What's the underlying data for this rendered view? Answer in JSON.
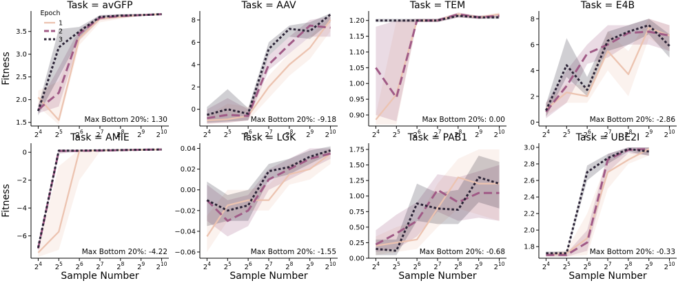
{
  "figure": {
    "ylabel": "Fitness",
    "xlabel": "Sample Number",
    "legend": {
      "title": "Epoch",
      "entries": [
        "1",
        "2",
        "3"
      ],
      "placement": "top-left of first panel"
    },
    "series_colors": {
      "1": "#ecc3b0",
      "2": "#a05a86",
      "3": "#2b2336"
    }
  },
  "chart_data": [
    {
      "type": "line",
      "title": "Task = avGFP",
      "annotation": "Max Bottom 20%: 1.30",
      "x_exponents": [
        4,
        5,
        6,
        7,
        8,
        9,
        10
      ],
      "x_ticks": [
        4,
        5,
        6,
        7,
        8,
        9,
        10
      ],
      "ylim": [
        1.42,
        3.95
      ],
      "yticks": [
        1.5,
        2.0,
        2.5,
        3.0,
        3.5
      ],
      "ytick_labels": [
        "1.5",
        "2.0",
        "2.5",
        "3.0",
        "3.5"
      ],
      "series": [
        {
          "name": "1",
          "values": [
            2.05,
            1.55,
            3.35,
            3.78,
            3.82,
            3.86,
            3.88
          ],
          "lower": [
            1.85,
            1.45,
            3.2,
            3.7,
            3.78,
            3.84,
            3.86
          ],
          "upper": [
            2.2,
            2.4,
            3.5,
            3.82,
            3.86,
            3.88,
            3.9
          ]
        },
        {
          "name": "2",
          "values": [
            1.78,
            2.15,
            3.45,
            3.8,
            3.84,
            3.86,
            3.88
          ],
          "lower": [
            1.7,
            1.85,
            3.3,
            3.75,
            3.8,
            3.84,
            3.86
          ],
          "upper": [
            1.9,
            2.7,
            3.55,
            3.85,
            3.88,
            3.88,
            3.9
          ]
        },
        {
          "name": "3",
          "values": [
            1.75,
            3.15,
            3.5,
            3.82,
            3.85,
            3.86,
            3.88
          ],
          "lower": [
            1.65,
            2.5,
            3.35,
            3.78,
            3.82,
            3.84,
            3.86
          ],
          "upper": [
            1.85,
            3.55,
            3.6,
            3.86,
            3.88,
            3.88,
            3.9
          ]
        }
      ]
    },
    {
      "type": "line",
      "title": "Task = AAV",
      "annotation": "Max Bottom 20%: -9.18",
      "x_exponents": [
        4,
        5,
        6,
        7,
        8,
        9,
        10
      ],
      "x_ticks": [
        4,
        5,
        6,
        7,
        8,
        9,
        10
      ],
      "ylim": [
        -1.5,
        8.8
      ],
      "yticks": [
        0,
        2,
        4,
        6,
        8
      ],
      "ytick_labels": [
        "0",
        "2",
        "4",
        "6",
        "8"
      ],
      "series": [
        {
          "name": "1",
          "values": [
            -1.0,
            -0.9,
            -0.6,
            2.0,
            4.0,
            5.5,
            8.0
          ],
          "lower": [
            -1.3,
            -1.2,
            -1.0,
            1.0,
            3.0,
            4.5,
            7.0
          ],
          "upper": [
            -0.6,
            0.5,
            0.2,
            3.0,
            5.0,
            6.5,
            8.4
          ]
        },
        {
          "name": "2",
          "values": [
            -0.8,
            -0.5,
            -0.6,
            4.0,
            5.8,
            7.5,
            7.3
          ],
          "lower": [
            -1.3,
            -1.2,
            -1.0,
            3.5,
            5.0,
            6.5,
            6.5
          ],
          "upper": [
            0.0,
            1.0,
            0.0,
            4.8,
            6.5,
            8.0,
            8.3
          ]
        },
        {
          "name": "3",
          "values": [
            -0.5,
            0.0,
            -0.4,
            5.4,
            7.2,
            7.0,
            8.5
          ],
          "lower": [
            -1.2,
            -1.1,
            -1.0,
            4.8,
            6.5,
            6.3,
            7.8
          ],
          "upper": [
            0.2,
            1.8,
            0.1,
            6.0,
            7.5,
            7.8,
            8.6
          ]
        }
      ]
    },
    {
      "type": "line",
      "title": "Task = TEM",
      "annotation": "Max Bottom 20%: 0.00",
      "x_exponents": [
        4,
        5,
        6,
        7,
        8,
        9,
        10
      ],
      "x_ticks": [
        4,
        5,
        6,
        7,
        8,
        9,
        10
      ],
      "ylim": [
        0.865,
        1.23
      ],
      "yticks": [
        0.9,
        0.95,
        1.0,
        1.05,
        1.1,
        1.15,
        1.2
      ],
      "ytick_labels": [
        "0.90",
        "0.95",
        "1.00",
        "1.05",
        "1.10",
        "1.15",
        "1.20"
      ],
      "series": [
        {
          "name": "1",
          "values": [
            0.885,
            0.965,
            1.2,
            1.2,
            1.22,
            1.21,
            1.22
          ],
          "lower": [
            0.87,
            0.87,
            1.195,
            1.195,
            1.21,
            1.205,
            1.21
          ],
          "upper": [
            0.9,
            1.2,
            1.205,
            1.205,
            1.225,
            1.215,
            1.225
          ]
        },
        {
          "name": "2",
          "values": [
            1.05,
            0.955,
            1.2,
            1.2,
            1.22,
            1.21,
            1.215
          ],
          "lower": [
            0.9,
            0.88,
            1.195,
            1.195,
            1.21,
            1.205,
            1.21
          ],
          "upper": [
            1.18,
            1.2,
            1.205,
            1.205,
            1.225,
            1.215,
            1.22
          ]
        },
        {
          "name": "3",
          "values": [
            1.2,
            1.2,
            1.2,
            1.2,
            1.215,
            1.21,
            1.21
          ],
          "lower": [
            1.195,
            1.195,
            1.195,
            1.195,
            1.21,
            1.205,
            1.205
          ],
          "upper": [
            1.205,
            1.205,
            1.205,
            1.205,
            1.22,
            1.215,
            1.215
          ]
        }
      ]
    },
    {
      "type": "line",
      "title": "Task = E4B",
      "annotation": "Max Bottom 20%: -2.86",
      "x_exponents": [
        4,
        5,
        6,
        7,
        8,
        9,
        10
      ],
      "x_ticks": [
        4,
        5,
        6,
        7,
        8,
        9,
        10
      ],
      "ylim": [
        -0.3,
        8.6
      ],
      "yticks": [
        0,
        2,
        4,
        6,
        8
      ],
      "ytick_labels": [
        "0",
        "2",
        "4",
        "6",
        "8"
      ],
      "series": [
        {
          "name": "1",
          "values": [
            1.0,
            2.3,
            2.0,
            5.5,
            3.7,
            7.3,
            6.7
          ],
          "lower": [
            0.5,
            1.5,
            1.5,
            4.0,
            2.0,
            6.5,
            5.5
          ],
          "upper": [
            1.5,
            3.0,
            2.8,
            7.0,
            5.5,
            8.0,
            7.5
          ]
        },
        {
          "name": "2",
          "values": [
            0.8,
            2.8,
            5.3,
            6.0,
            6.9,
            7.0,
            6.7
          ],
          "lower": [
            0.3,
            1.5,
            4.5,
            5.0,
            6.0,
            6.0,
            5.5
          ],
          "upper": [
            1.5,
            4.0,
            6.0,
            7.5,
            7.5,
            8.0,
            7.5
          ]
        },
        {
          "name": "3",
          "values": [
            0.9,
            4.4,
            2.5,
            6.3,
            7.0,
            7.5,
            5.9
          ],
          "lower": [
            0.4,
            3.5,
            2.0,
            5.5,
            6.0,
            6.8,
            5.0
          ],
          "upper": [
            1.4,
            6.5,
            3.5,
            7.0,
            7.5,
            8.0,
            6.8
          ]
        }
      ]
    },
    {
      "type": "line",
      "title": "Task = AMIE",
      "annotation": "Max Bottom 20%: -4.22",
      "x_exponents": [
        4,
        5,
        6,
        7,
        8,
        9,
        10
      ],
      "x_ticks": [
        4,
        5,
        6,
        7,
        8,
        9,
        10
      ],
      "ylim": [
        -7.6,
        0.65
      ],
      "yticks": [
        -6,
        -4,
        -2,
        0
      ],
      "ytick_labels": [
        "−6",
        "−4",
        "−2",
        "0"
      ],
      "series": [
        {
          "name": "1",
          "values": [
            -7.2,
            -5.7,
            0.1,
            0.12,
            0.15,
            0.18,
            0.2
          ],
          "lower": [
            -7.5,
            -7.0,
            -2.0,
            0.05,
            0.1,
            0.12,
            0.15
          ],
          "upper": [
            -6.8,
            -1.0,
            0.2,
            0.2,
            0.2,
            0.22,
            0.25
          ]
        },
        {
          "name": "2",
          "values": [
            -6.9,
            0.1,
            0.1,
            0.12,
            0.15,
            0.18,
            0.2
          ],
          "lower": [
            -7.1,
            -0.1,
            0.05,
            0.08,
            0.1,
            0.12,
            0.15
          ],
          "upper": [
            -6.7,
            0.2,
            0.15,
            0.16,
            0.2,
            0.22,
            0.25
          ]
        },
        {
          "name": "3",
          "values": [
            -6.85,
            0.12,
            0.12,
            0.14,
            0.16,
            0.18,
            0.2
          ],
          "lower": [
            -7.0,
            0.0,
            0.05,
            0.08,
            0.1,
            0.12,
            0.15
          ],
          "upper": [
            -6.7,
            0.2,
            0.18,
            0.2,
            0.22,
            0.24,
            0.25
          ]
        }
      ]
    },
    {
      "type": "line",
      "title": "Task = LGK",
      "annotation": "Max Bottom 20%: -1.55",
      "x_exponents": [
        4,
        5,
        6,
        7,
        8,
        9,
        10
      ],
      "x_ticks": [
        4,
        5,
        6,
        7,
        8,
        9,
        10
      ],
      "ylim": [
        -0.066,
        0.045
      ],
      "yticks": [
        -0.06,
        -0.04,
        -0.02,
        0.0,
        0.02,
        0.04
      ],
      "ytick_labels": [
        "−0.06",
        "−0.04",
        "−0.02",
        "0.00",
        "0.02",
        "0.04"
      ],
      "series": [
        {
          "name": "1",
          "values": [
            -0.045,
            -0.015,
            -0.01,
            -0.01,
            0.015,
            0.02,
            0.035
          ],
          "lower": [
            -0.06,
            -0.03,
            -0.02,
            -0.02,
            0.005,
            0.01,
            0.025
          ],
          "upper": [
            -0.025,
            0.0,
            0.0,
            0.005,
            0.025,
            0.03,
            0.04
          ]
        },
        {
          "name": "2",
          "values": [
            -0.01,
            -0.03,
            -0.02,
            0.01,
            0.02,
            0.03,
            0.035
          ],
          "lower": [
            -0.03,
            -0.045,
            -0.035,
            0.0,
            0.01,
            0.02,
            0.03
          ],
          "upper": [
            0.005,
            -0.01,
            -0.005,
            0.02,
            0.03,
            0.04,
            0.04
          ]
        },
        {
          "name": "3",
          "values": [
            -0.01,
            -0.02,
            -0.015,
            0.018,
            0.022,
            0.032,
            0.038
          ],
          "lower": [
            -0.035,
            -0.03,
            -0.03,
            0.01,
            0.015,
            0.025,
            0.035
          ],
          "upper": [
            0.008,
            -0.005,
            0.0,
            0.025,
            0.03,
            0.038,
            0.042
          ]
        }
      ]
    },
    {
      "type": "line",
      "title": "Task = PAB1",
      "annotation": "Max Bottom 20%: -0.68",
      "x_exponents": [
        4,
        5,
        6,
        7,
        8,
        9,
        10
      ],
      "x_ticks": [
        4,
        5,
        6,
        7,
        8,
        9,
        10
      ],
      "ylim": [
        0.0,
        1.85
      ],
      "yticks": [
        0,
        0.25,
        0.5,
        0.75,
        1.0,
        1.25,
        1.5,
        1.75
      ],
      "ytick_labels": [
        "0.00",
        "0.25",
        "0.50",
        "0.75",
        "1.00",
        "1.25",
        "1.50",
        "1.75"
      ],
      "series": [
        {
          "name": "1",
          "values": [
            0.2,
            0.25,
            0.3,
            0.8,
            1.3,
            1.2,
            1.2
          ],
          "lower": [
            0.05,
            0.1,
            0.15,
            0.5,
            0.8,
            0.7,
            0.6
          ],
          "upper": [
            0.35,
            0.5,
            0.6,
            1.2,
            1.6,
            1.75,
            1.75
          ]
        },
        {
          "name": "2",
          "values": [
            0.22,
            0.4,
            0.6,
            1.1,
            0.9,
            1.05,
            1.05
          ],
          "lower": [
            0.1,
            0.15,
            0.35,
            0.75,
            0.6,
            0.65,
            0.6
          ],
          "upper": [
            0.45,
            0.7,
            0.9,
            1.35,
            1.3,
            1.4,
            1.5
          ]
        },
        {
          "name": "3",
          "values": [
            0.15,
            0.12,
            0.88,
            0.8,
            0.78,
            1.3,
            1.2
          ],
          "lower": [
            0.05,
            0.05,
            0.6,
            0.55,
            0.55,
            0.9,
            0.8
          ],
          "upper": [
            0.3,
            0.3,
            1.2,
            1.05,
            1.1,
            1.65,
            1.55
          ]
        }
      ]
    },
    {
      "type": "line",
      "title": "Task = UBE2I",
      "annotation": "Max Bottom 20%: -0.33",
      "x_exponents": [
        4,
        5,
        6,
        7,
        8,
        9
      ],
      "x_ticks": [
        4,
        5,
        6,
        7,
        8,
        9,
        10
      ],
      "ylim": [
        1.66,
        3.05
      ],
      "yticks": [
        1.8,
        2.0,
        2.2,
        2.4,
        2.6,
        2.8,
        3.0
      ],
      "ytick_labels": [
        "1.8",
        "2.0",
        "2.2",
        "2.4",
        "2.6",
        "2.8",
        "3.0"
      ],
      "series": [
        {
          "name": "1",
          "values": [
            1.7,
            1.72,
            1.9,
            2.7,
            2.85,
            2.98
          ],
          "lower": [
            1.68,
            1.68,
            1.7,
            2.5,
            2.8,
            2.9
          ],
          "upper": [
            1.72,
            1.76,
            2.2,
            2.85,
            2.92,
            3.0
          ]
        },
        {
          "name": "2",
          "values": [
            1.7,
            1.7,
            1.85,
            2.85,
            2.97,
            2.98
          ],
          "lower": [
            1.68,
            1.68,
            1.75,
            2.7,
            2.93,
            2.9
          ],
          "upper": [
            1.72,
            1.72,
            2.0,
            2.92,
            3.0,
            3.0
          ]
        },
        {
          "name": "3",
          "values": [
            1.72,
            1.72,
            2.7,
            2.87,
            2.98,
            2.95
          ],
          "lower": [
            1.7,
            1.7,
            2.6,
            2.8,
            2.95,
            2.9
          ],
          "upper": [
            1.74,
            1.74,
            2.78,
            2.92,
            3.0,
            3.0
          ]
        }
      ]
    }
  ]
}
